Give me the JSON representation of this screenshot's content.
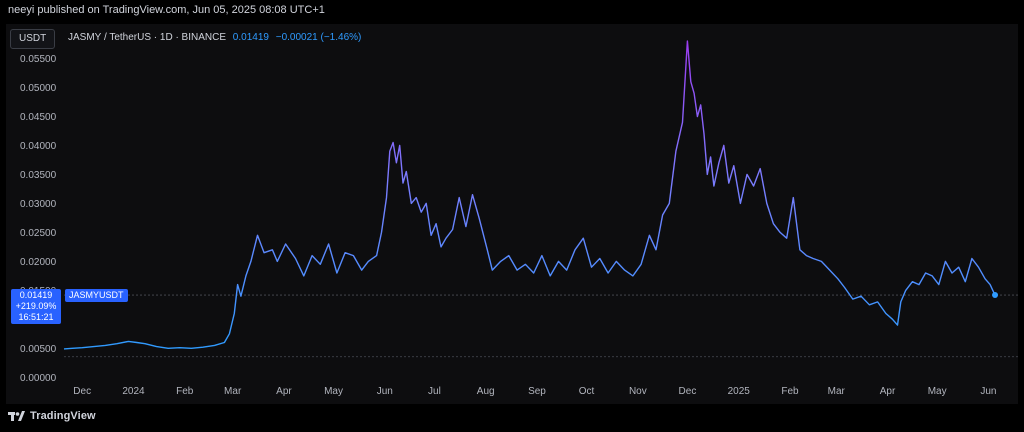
{
  "header": {
    "publish_text": "neeyi published on TradingView.com, Jun 05, 2025 08:08 UTC+1"
  },
  "toolbar": {
    "currency_label": "USDT",
    "pair_text": "JASMY / TetherUS · 1D · BINANCE",
    "last_value": "0.01419",
    "change_text": "−0.00021 (−1.46%)"
  },
  "price_tag": {
    "value": "0.01419",
    "change_pct": "+219.09%",
    "countdown": "16:51:21",
    "symbol": "JASMYUSDT"
  },
  "footer": {
    "brand": "TradingView"
  },
  "colors": {
    "line_start": "#2f9bff",
    "line_mid": "#7b7cff",
    "line_peak": "#9b3cf0",
    "tag_bg": "#2962ff",
    "axis_text": "#b2b5be",
    "grid_dash": "#4a4d55"
  },
  "chart_data": {
    "type": "line",
    "series": [
      {
        "name": "JASMYUSDT",
        "x": [
          "2023-11-20",
          "2023-11-25",
          "2023-12-01",
          "2023-12-08",
          "2023-12-15",
          "2023-12-22",
          "2023-12-29",
          "2024-01-03",
          "2024-01-08",
          "2024-01-15",
          "2024-01-22",
          "2024-01-29",
          "2024-02-05",
          "2024-02-12",
          "2024-02-19",
          "2024-02-25",
          "2024-02-28",
          "2024-03-02",
          "2024-03-04",
          "2024-03-06",
          "2024-03-09",
          "2024-03-12",
          "2024-03-16",
          "2024-03-20",
          "2024-03-25",
          "2024-03-28",
          "2024-04-02",
          "2024-04-08",
          "2024-04-13",
          "2024-04-18",
          "2024-04-23",
          "2024-04-28",
          "2024-05-03",
          "2024-05-08",
          "2024-05-13",
          "2024-05-18",
          "2024-05-22",
          "2024-05-27",
          "2024-05-30",
          "2024-06-02",
          "2024-06-04",
          "2024-06-06",
          "2024-06-08",
          "2024-06-10",
          "2024-06-12",
          "2024-06-14",
          "2024-06-17",
          "2024-06-20",
          "2024-06-23",
          "2024-06-26",
          "2024-06-29",
          "2024-07-02",
          "2024-07-05",
          "2024-07-08",
          "2024-07-12",
          "2024-07-16",
          "2024-07-20",
          "2024-07-24",
          "2024-07-28",
          "2024-08-02",
          "2024-08-05",
          "2024-08-10",
          "2024-08-15",
          "2024-08-20",
          "2024-08-25",
          "2024-08-30",
          "2024-09-04",
          "2024-09-09",
          "2024-09-14",
          "2024-09-19",
          "2024-09-24",
          "2024-09-29",
          "2024-10-04",
          "2024-10-09",
          "2024-10-14",
          "2024-10-19",
          "2024-10-24",
          "2024-10-29",
          "2024-11-03",
          "2024-11-08",
          "2024-11-12",
          "2024-11-16",
          "2024-11-20",
          "2024-11-24",
          "2024-11-28",
          "2024-12-01",
          "2024-12-03",
          "2024-12-05",
          "2024-12-07",
          "2024-12-09",
          "2024-12-11",
          "2024-12-13",
          "2024-12-15",
          "2024-12-17",
          "2024-12-20",
          "2024-12-23",
          "2024-12-26",
          "2024-12-29",
          "2025-01-02",
          "2025-01-06",
          "2025-01-10",
          "2025-01-14",
          "2025-01-18",
          "2025-01-22",
          "2025-01-26",
          "2025-01-30",
          "2025-02-03",
          "2025-02-07",
          "2025-02-11",
          "2025-02-15",
          "2025-02-20",
          "2025-02-25",
          "2025-03-02",
          "2025-03-06",
          "2025-03-11",
          "2025-03-16",
          "2025-03-21",
          "2025-03-26",
          "2025-03-31",
          "2025-04-04",
          "2025-04-07",
          "2025-04-09",
          "2025-04-12",
          "2025-04-16",
          "2025-04-20",
          "2025-04-24",
          "2025-04-28",
          "2025-05-02",
          "2025-05-06",
          "2025-05-10",
          "2025-05-14",
          "2025-05-18",
          "2025-05-22",
          "2025-05-26",
          "2025-05-30",
          "2025-06-02",
          "2025-06-05"
        ],
        "values": [
          0.0049,
          0.005,
          0.0051,
          0.0053,
          0.0055,
          0.0058,
          0.0062,
          0.006,
          0.0058,
          0.0053,
          0.005,
          0.0051,
          0.005,
          0.0052,
          0.0055,
          0.006,
          0.0075,
          0.011,
          0.016,
          0.014,
          0.0175,
          0.02,
          0.0245,
          0.0215,
          0.022,
          0.02,
          0.023,
          0.0205,
          0.0175,
          0.021,
          0.0195,
          0.023,
          0.018,
          0.0215,
          0.021,
          0.0185,
          0.02,
          0.021,
          0.025,
          0.031,
          0.039,
          0.0405,
          0.037,
          0.04,
          0.0335,
          0.0355,
          0.03,
          0.031,
          0.0285,
          0.03,
          0.0245,
          0.0265,
          0.0225,
          0.024,
          0.0255,
          0.031,
          0.026,
          0.0315,
          0.0275,
          0.022,
          0.0185,
          0.02,
          0.021,
          0.0185,
          0.0195,
          0.018,
          0.021,
          0.0175,
          0.02,
          0.0185,
          0.022,
          0.024,
          0.019,
          0.0205,
          0.018,
          0.02,
          0.0185,
          0.0175,
          0.0195,
          0.0245,
          0.022,
          0.028,
          0.03,
          0.039,
          0.044,
          0.058,
          0.051,
          0.049,
          0.045,
          0.047,
          0.042,
          0.035,
          0.038,
          0.033,
          0.037,
          0.04,
          0.0335,
          0.0365,
          0.03,
          0.035,
          0.033,
          0.036,
          0.03,
          0.0265,
          0.025,
          0.024,
          0.031,
          0.022,
          0.021,
          0.0205,
          0.02,
          0.0185,
          0.017,
          0.0155,
          0.0135,
          0.014,
          0.0125,
          0.013,
          0.011,
          0.01,
          0.009,
          0.013,
          0.015,
          0.0165,
          0.016,
          0.018,
          0.0175,
          0.016,
          0.02,
          0.018,
          0.019,
          0.0165,
          0.0205,
          0.019,
          0.017,
          0.016,
          0.01419
        ]
      }
    ],
    "x_ticks": [
      "Dec",
      "2024",
      "Feb",
      "Mar",
      "Apr",
      "May",
      "Jun",
      "Jul",
      "Aug",
      "Sep",
      "Oct",
      "Nov",
      "Dec",
      "2025",
      "Feb",
      "Mar",
      "Apr",
      "May",
      "Jun"
    ],
    "x_tick_dates": [
      "2023-12-01",
      "2024-01-01",
      "2024-02-01",
      "2024-03-01",
      "2024-04-01",
      "2024-05-01",
      "2024-06-01",
      "2024-07-01",
      "2024-08-01",
      "2024-09-01",
      "2024-10-01",
      "2024-11-01",
      "2024-12-01",
      "2025-01-01",
      "2025-02-01",
      "2025-03-01",
      "2025-04-01",
      "2025-05-01",
      "2025-06-01"
    ],
    "y_ticks": [
      "0.05500",
      "0.05000",
      "0.04500",
      "0.04000",
      "0.03500",
      "0.03000",
      "0.02500",
      "0.02000",
      "0.01500",
      "0.01000",
      "0.00500",
      "0.00000"
    ],
    "ylim": [
      -0.0015,
      0.0575
    ],
    "xlim": [
      "2023-11-20",
      "2025-06-08"
    ],
    "reference_lines": [
      0.01419,
      0.00355
    ],
    "grid": false
  }
}
